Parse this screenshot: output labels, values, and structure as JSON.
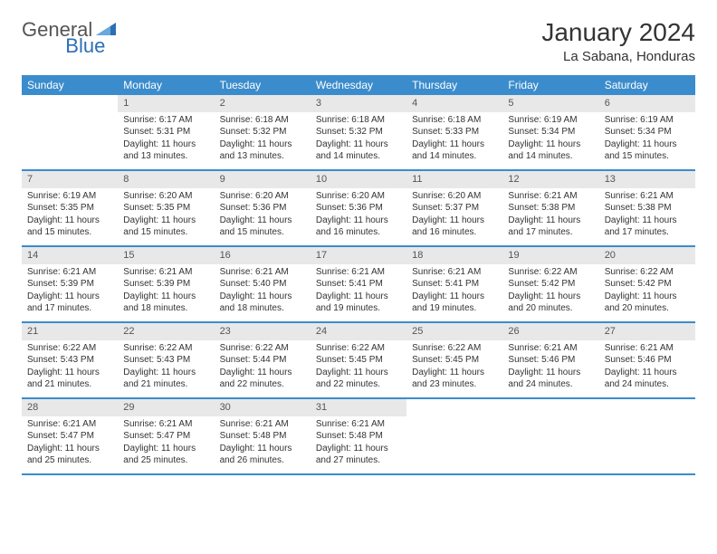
{
  "logo": {
    "text1": "General",
    "text2": "Blue"
  },
  "title": "January 2024",
  "location": "La Sabana, Honduras",
  "weekdays": [
    "Sunday",
    "Monday",
    "Tuesday",
    "Wednesday",
    "Thursday",
    "Friday",
    "Saturday"
  ],
  "colors": {
    "header_bg": "#3b8ccc",
    "header_text": "#ffffff",
    "daynum_bg": "#e8e8e8",
    "row_border": "#3b8ccc",
    "logo_blue": "#2d6fb5",
    "text": "#333333"
  },
  "weeks": [
    [
      {
        "empty": true
      },
      {
        "n": "1",
        "sr": "6:17 AM",
        "ss": "5:31 PM",
        "dl": "11 hours and 13 minutes."
      },
      {
        "n": "2",
        "sr": "6:18 AM",
        "ss": "5:32 PM",
        "dl": "11 hours and 13 minutes."
      },
      {
        "n": "3",
        "sr": "6:18 AM",
        "ss": "5:32 PM",
        "dl": "11 hours and 14 minutes."
      },
      {
        "n": "4",
        "sr": "6:18 AM",
        "ss": "5:33 PM",
        "dl": "11 hours and 14 minutes."
      },
      {
        "n": "5",
        "sr": "6:19 AM",
        "ss": "5:34 PM",
        "dl": "11 hours and 14 minutes."
      },
      {
        "n": "6",
        "sr": "6:19 AM",
        "ss": "5:34 PM",
        "dl": "11 hours and 15 minutes."
      }
    ],
    [
      {
        "n": "7",
        "sr": "6:19 AM",
        "ss": "5:35 PM",
        "dl": "11 hours and 15 minutes."
      },
      {
        "n": "8",
        "sr": "6:20 AM",
        "ss": "5:35 PM",
        "dl": "11 hours and 15 minutes."
      },
      {
        "n": "9",
        "sr": "6:20 AM",
        "ss": "5:36 PM",
        "dl": "11 hours and 15 minutes."
      },
      {
        "n": "10",
        "sr": "6:20 AM",
        "ss": "5:36 PM",
        "dl": "11 hours and 16 minutes."
      },
      {
        "n": "11",
        "sr": "6:20 AM",
        "ss": "5:37 PM",
        "dl": "11 hours and 16 minutes."
      },
      {
        "n": "12",
        "sr": "6:21 AM",
        "ss": "5:38 PM",
        "dl": "11 hours and 17 minutes."
      },
      {
        "n": "13",
        "sr": "6:21 AM",
        "ss": "5:38 PM",
        "dl": "11 hours and 17 minutes."
      }
    ],
    [
      {
        "n": "14",
        "sr": "6:21 AM",
        "ss": "5:39 PM",
        "dl": "11 hours and 17 minutes."
      },
      {
        "n": "15",
        "sr": "6:21 AM",
        "ss": "5:39 PM",
        "dl": "11 hours and 18 minutes."
      },
      {
        "n": "16",
        "sr": "6:21 AM",
        "ss": "5:40 PM",
        "dl": "11 hours and 18 minutes."
      },
      {
        "n": "17",
        "sr": "6:21 AM",
        "ss": "5:41 PM",
        "dl": "11 hours and 19 minutes."
      },
      {
        "n": "18",
        "sr": "6:21 AM",
        "ss": "5:41 PM",
        "dl": "11 hours and 19 minutes."
      },
      {
        "n": "19",
        "sr": "6:22 AM",
        "ss": "5:42 PM",
        "dl": "11 hours and 20 minutes."
      },
      {
        "n": "20",
        "sr": "6:22 AM",
        "ss": "5:42 PM",
        "dl": "11 hours and 20 minutes."
      }
    ],
    [
      {
        "n": "21",
        "sr": "6:22 AM",
        "ss": "5:43 PM",
        "dl": "11 hours and 21 minutes."
      },
      {
        "n": "22",
        "sr": "6:22 AM",
        "ss": "5:43 PM",
        "dl": "11 hours and 21 minutes."
      },
      {
        "n": "23",
        "sr": "6:22 AM",
        "ss": "5:44 PM",
        "dl": "11 hours and 22 minutes."
      },
      {
        "n": "24",
        "sr": "6:22 AM",
        "ss": "5:45 PM",
        "dl": "11 hours and 22 minutes."
      },
      {
        "n": "25",
        "sr": "6:22 AM",
        "ss": "5:45 PM",
        "dl": "11 hours and 23 minutes."
      },
      {
        "n": "26",
        "sr": "6:21 AM",
        "ss": "5:46 PM",
        "dl": "11 hours and 24 minutes."
      },
      {
        "n": "27",
        "sr": "6:21 AM",
        "ss": "5:46 PM",
        "dl": "11 hours and 24 minutes."
      }
    ],
    [
      {
        "n": "28",
        "sr": "6:21 AM",
        "ss": "5:47 PM",
        "dl": "11 hours and 25 minutes."
      },
      {
        "n": "29",
        "sr": "6:21 AM",
        "ss": "5:47 PM",
        "dl": "11 hours and 25 minutes."
      },
      {
        "n": "30",
        "sr": "6:21 AM",
        "ss": "5:48 PM",
        "dl": "11 hours and 26 minutes."
      },
      {
        "n": "31",
        "sr": "6:21 AM",
        "ss": "5:48 PM",
        "dl": "11 hours and 27 minutes."
      },
      {
        "empty": true
      },
      {
        "empty": true
      },
      {
        "empty": true
      }
    ]
  ],
  "labels": {
    "sunrise": "Sunrise:",
    "sunset": "Sunset:",
    "daylight": "Daylight:"
  }
}
